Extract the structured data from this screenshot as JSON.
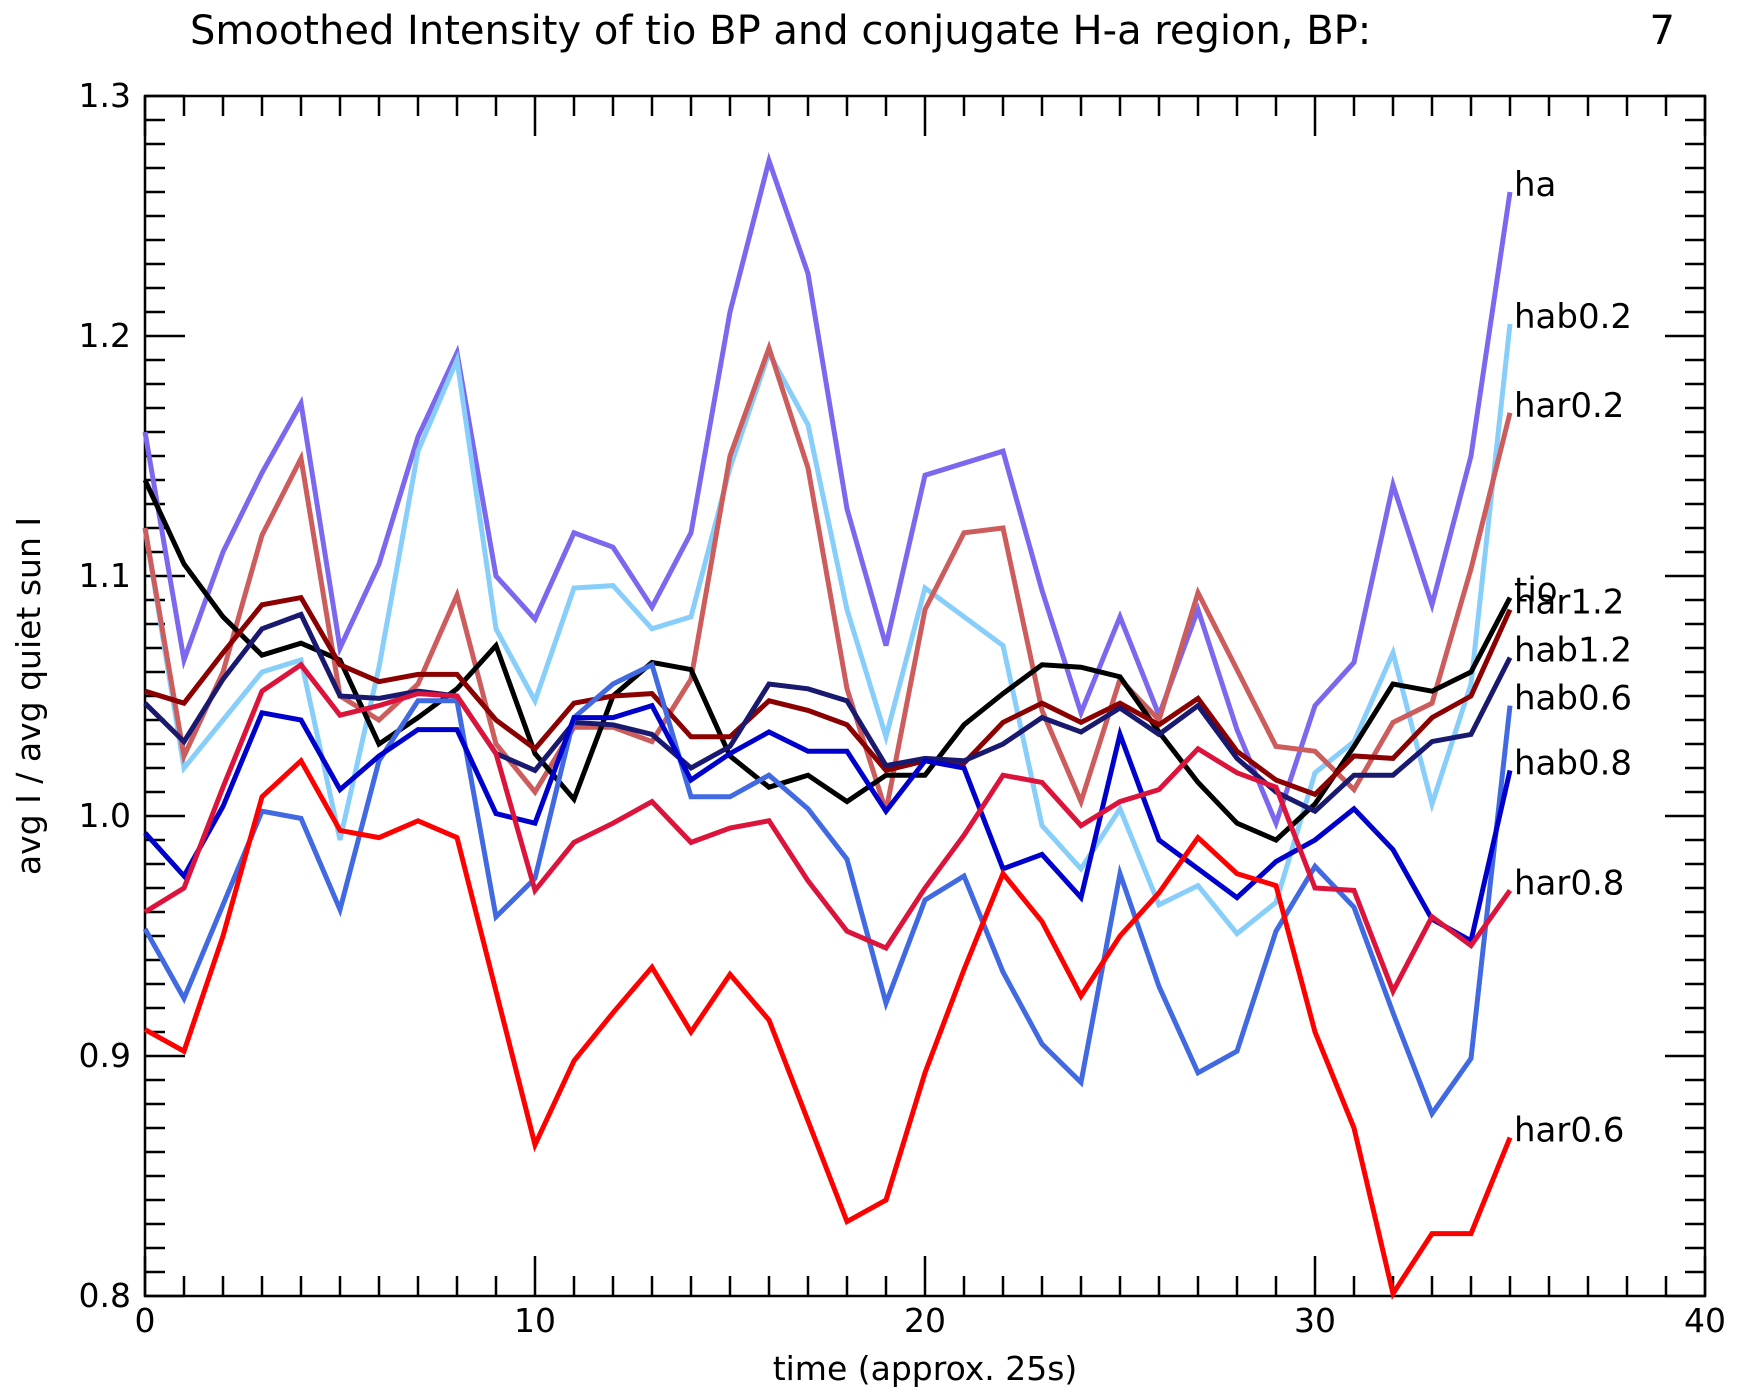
{
  "chart_data": {
    "type": "line",
    "title": "Smoothed Intensity of tio BP and conjugate H-a region, BP:",
    "title_value": "7",
    "xlabel": "time (approx. 25s)",
    "ylabel": "avg I / avg quiet sun I",
    "xlim": [
      0,
      40
    ],
    "ylim": [
      0.8,
      1.3
    ],
    "x_ticks": [
      "0",
      "10",
      "20",
      "30",
      "40"
    ],
    "y_ticks": [
      "0.8",
      "0.9",
      "1.0",
      "1.1",
      "1.2",
      "1.3"
    ],
    "x_tick_values": [
      0,
      10,
      20,
      30,
      40
    ],
    "y_tick_values": [
      0.8,
      0.9,
      1.0,
      1.1,
      1.2,
      1.3
    ],
    "grid": false,
    "legend": "labels at line ends",
    "x": [
      0,
      1,
      2,
      3,
      4,
      5,
      6,
      7,
      8,
      9,
      10,
      11,
      12,
      13,
      14,
      15,
      16,
      17,
      18,
      19,
      20,
      21,
      22,
      23,
      24,
      25,
      26,
      27,
      28,
      29,
      30,
      31,
      32,
      33,
      34,
      35
    ],
    "series": [
      {
        "name": "ha",
        "color": "#7b68ee",
        "values": [
          1.16,
          1.065,
          1.11,
          1.143,
          1.172,
          1.07,
          1.105,
          1.158,
          1.193,
          1.1,
          1.082,
          1.118,
          1.112,
          1.087,
          1.118,
          1.21,
          1.273,
          1.226,
          1.128,
          1.071,
          1.142,
          1.147,
          1.152,
          1.094,
          1.043,
          1.083,
          1.042,
          1.086,
          1.036,
          0.997,
          1.046,
          1.064,
          1.138,
          1.088,
          1.15,
          1.26
        ]
      },
      {
        "name": "hab0.2",
        "color": "#87cefa",
        "values": [
          1.12,
          1.02,
          1.04,
          1.06,
          1.065,
          0.99,
          1.062,
          1.152,
          1.19,
          1.078,
          1.048,
          1.095,
          1.096,
          1.078,
          1.083,
          1.145,
          1.193,
          1.163,
          1.086,
          1.033,
          1.095,
          1.083,
          1.071,
          0.996,
          0.978,
          1.003,
          0.963,
          0.971,
          0.951,
          0.964,
          1.018,
          1.031,
          1.068,
          1.005,
          1.055,
          1.205
        ]
      },
      {
        "name": "har0.2",
        "color": "#cd5c5c",
        "values": [
          1.12,
          1.025,
          1.06,
          1.117,
          1.149,
          1.05,
          1.04,
          1.055,
          1.092,
          1.03,
          1.01,
          1.037,
          1.037,
          1.031,
          1.057,
          1.15,
          1.195,
          1.145,
          1.053,
          1.002,
          1.086,
          1.118,
          1.12,
          1.044,
          1.006,
          1.057,
          1.04,
          1.093,
          1.061,
          1.029,
          1.027,
          1.011,
          1.039,
          1.047,
          1.103,
          1.168
        ]
      },
      {
        "name": "tio",
        "color": "#000000",
        "values": [
          1.14,
          1.105,
          1.083,
          1.067,
          1.072,
          1.065,
          1.03,
          1.041,
          1.053,
          1.071,
          1.026,
          1.007,
          1.05,
          1.064,
          1.061,
          1.025,
          1.012,
          1.017,
          1.006,
          1.017,
          1.017,
          1.038,
          1.051,
          1.063,
          1.062,
          1.058,
          1.035,
          1.014,
          0.997,
          0.99,
          1.005,
          1.029,
          1.055,
          1.052,
          1.06,
          1.091
        ]
      },
      {
        "name": "har1.2",
        "color": "#8b0000",
        "values": [
          1.052,
          1.047,
          1.068,
          1.088,
          1.091,
          1.063,
          1.056,
          1.059,
          1.059,
          1.04,
          1.028,
          1.047,
          1.05,
          1.051,
          1.033,
          1.033,
          1.048,
          1.044,
          1.038,
          1.019,
          1.023,
          1.022,
          1.039,
          1.047,
          1.039,
          1.047,
          1.038,
          1.049,
          1.027,
          1.015,
          1.009,
          1.025,
          1.024,
          1.041,
          1.05,
          1.086
        ]
      },
      {
        "name": "hab1.2",
        "color": "#191970",
        "values": [
          1.047,
          1.031,
          1.057,
          1.078,
          1.084,
          1.05,
          1.049,
          1.052,
          1.05,
          1.026,
          1.019,
          1.039,
          1.038,
          1.034,
          1.02,
          1.029,
          1.055,
          1.053,
          1.048,
          1.021,
          1.024,
          1.023,
          1.03,
          1.041,
          1.035,
          1.045,
          1.034,
          1.046,
          1.024,
          1.01,
          1.002,
          1.017,
          1.017,
          1.031,
          1.034,
          1.066
        ]
      },
      {
        "name": "hab0.6",
        "color": "#4169e1",
        "values": [
          0.953,
          0.924,
          0.963,
          1.002,
          0.999,
          0.961,
          1.023,
          1.048,
          1.048,
          0.958,
          0.974,
          1.041,
          1.055,
          1.063,
          1.008,
          1.008,
          1.017,
          1.003,
          0.982,
          0.922,
          0.965,
          0.975,
          0.935,
          0.905,
          0.889,
          0.976,
          0.929,
          0.893,
          0.902,
          0.952,
          0.979,
          0.962,
          0.918,
          0.876,
          0.899,
          1.046
        ]
      },
      {
        "name": "hab0.8",
        "color": "#0000cd",
        "values": [
          0.993,
          0.975,
          1.004,
          1.043,
          1.04,
          1.011,
          1.025,
          1.036,
          1.036,
          1.001,
          0.997,
          1.041,
          1.041,
          1.046,
          1.015,
          1.026,
          1.035,
          1.027,
          1.027,
          1.002,
          1.023,
          1.02,
          0.978,
          0.984,
          0.966,
          1.034,
          0.99,
          0.978,
          0.966,
          0.981,
          0.99,
          1.003,
          0.986,
          0.957,
          0.948,
          1.019
        ]
      },
      {
        "name": "har0.8",
        "color": "#dc143c",
        "values": [
          0.96,
          0.97,
          1.012,
          1.052,
          1.063,
          1.042,
          1.046,
          1.051,
          1.05,
          1.026,
          0.969,
          0.989,
          0.997,
          1.006,
          0.989,
          0.995,
          0.998,
          0.973,
          0.952,
          0.945,
          0.97,
          0.992,
          1.017,
          1.014,
          0.996,
          1.006,
          1.011,
          1.028,
          1.018,
          1.012,
          0.97,
          0.969,
          0.927,
          0.958,
          0.946,
          0.969
        ]
      },
      {
        "name": "har0.6",
        "color": "#ff0000",
        "values": [
          0.911,
          0.902,
          0.95,
          1.008,
          1.023,
          0.994,
          0.991,
          0.998,
          0.991,
          0.927,
          0.863,
          0.898,
          0.918,
          0.937,
          0.91,
          0.934,
          0.915,
          0.873,
          0.831,
          0.84,
          0.893,
          0.936,
          0.976,
          0.956,
          0.925,
          0.95,
          0.968,
          0.991,
          0.976,
          0.971,
          0.91,
          0.87,
          0.801,
          0.826,
          0.826,
          0.866
        ]
      }
    ]
  }
}
